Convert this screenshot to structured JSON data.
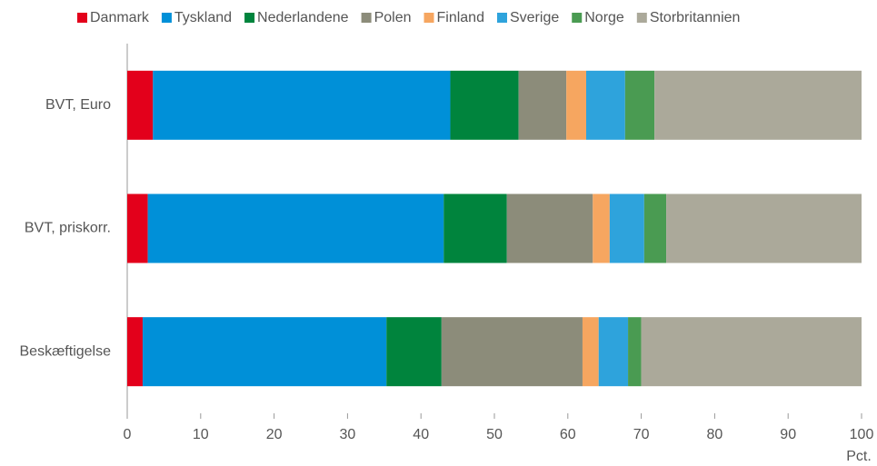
{
  "chart_data": {
    "type": "bar",
    "orientation": "horizontal",
    "stacked": true,
    "x_label": "Pct.",
    "categories": [
      "BVT, Euro",
      "BVT, priskorr.",
      "Beskæftigelse"
    ],
    "series": [
      {
        "name": "Danmark",
        "color": "#e3001b",
        "values": [
          3.5,
          2.8,
          2.1
        ]
      },
      {
        "name": "Tyskland",
        "color": "#0090d8",
        "values": [
          40.5,
          40.3,
          33.2
        ]
      },
      {
        "name": "Nederlandene",
        "color": "#00843d",
        "values": [
          9.3,
          8.6,
          7.5
        ]
      },
      {
        "name": "Polen",
        "color": "#8c8c7a",
        "values": [
          6.5,
          11.7,
          19.2
        ]
      },
      {
        "name": "Finland",
        "color": "#f6a660",
        "values": [
          2.7,
          2.3,
          2.2
        ]
      },
      {
        "name": "Sverige",
        "color": "#2ea3dc",
        "values": [
          5.3,
          4.7,
          4.0
        ]
      },
      {
        "name": "Norge",
        "color": "#4a9b52",
        "values": [
          4.0,
          3.0,
          1.8
        ]
      },
      {
        "name": "Storbritannien",
        "color": "#aba99a",
        "values": [
          28.2,
          26.6,
          30.0
        ]
      }
    ],
    "xlim": [
      0,
      100
    ],
    "xticks": [
      0,
      10,
      20,
      30,
      40,
      50,
      60,
      70,
      80,
      90,
      100
    ],
    "legend": "top"
  }
}
